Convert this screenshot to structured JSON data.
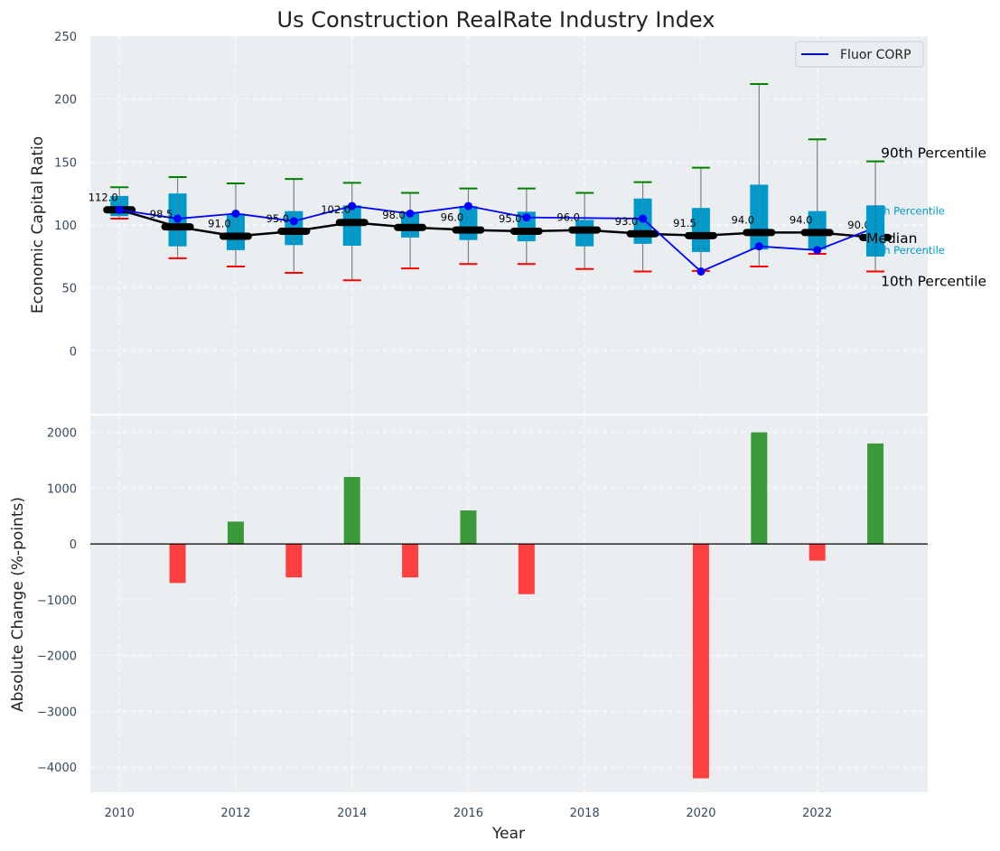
{
  "chart_data": [
    {
      "type": "box",
      "title": "Us Construction RealRate Industry Index",
      "xlabel": "",
      "ylabel": "Economic Capital Ratio",
      "ylim": [
        -50,
        250
      ],
      "xlim": [
        2009.5,
        2023.9
      ],
      "yticks": [
        0,
        50,
        100,
        150,
        200,
        250
      ],
      "grid": true,
      "legend": {
        "placement": "top-right",
        "entries": [
          {
            "label": "Fluor CORP",
            "color": "#0000ff"
          }
        ]
      },
      "years": [
        2010,
        2011,
        2012,
        2013,
        2014,
        2015,
        2016,
        2017,
        2018,
        2019,
        2020,
        2021,
        2022,
        2023
      ],
      "p10": [
        105,
        73.5,
        67,
        62,
        56,
        65.5,
        69,
        69,
        65,
        63,
        63.5,
        67,
        77,
        63
      ],
      "p25": [
        107,
        83,
        80,
        84,
        83.5,
        90,
        88,
        87,
        83,
        85,
        78.5,
        80.5,
        80.5,
        75
      ],
      "median": [
        112.0,
        98.5,
        91.0,
        95.0,
        102.0,
        98.0,
        96.0,
        95.0,
        96.0,
        93.0,
        91.5,
        94.0,
        94.0,
        90.0
      ],
      "median_labels": [
        "112.0",
        "98.5",
        "91.0",
        "95.0",
        "102.0",
        "98.0",
        "96.0",
        "95.0",
        "96.0",
        "93.0",
        "91.5",
        "94.0",
        "94.0",
        "90.0"
      ],
      "p75": [
        123,
        125,
        109,
        111,
        115.5,
        110.5,
        115,
        110.5,
        104,
        121,
        113.5,
        132,
        111,
        115.5
      ],
      "p90": [
        130,
        138,
        133,
        136.5,
        133.5,
        125.5,
        129,
        129,
        125.5,
        134,
        145.5,
        212,
        168,
        150.5
      ],
      "company": {
        "name": "Fluor CORP",
        "values": [
          112,
          105,
          109,
          103,
          115,
          109,
          115,
          106,
          null,
          105,
          63,
          83,
          80,
          98
        ]
      },
      "annotations": {
        "p90": "90th Percentile",
        "p75": "75th Percentile",
        "median": "Median",
        "p25": "25th Percentile",
        "p10": "10th Percentile"
      },
      "colors": {
        "box": "#0099cc",
        "whisker_top": "#008000",
        "whisker_bottom": "#ff0000",
        "median": "#000000",
        "company": "#0000ff",
        "background": "#eaeef0"
      }
    },
    {
      "type": "bar",
      "title": "",
      "xlabel": "Year",
      "ylabel": "Absolute Change (%-points)",
      "ylim": [
        -4450,
        2300
      ],
      "yticks": [
        -4000,
        -3000,
        -2000,
        -1000,
        0,
        1000,
        2000
      ],
      "xticks": [
        2010,
        2012,
        2014,
        2016,
        2018,
        2020,
        2022
      ],
      "grid": true,
      "categories": [
        2010,
        2011,
        2012,
        2013,
        2014,
        2015,
        2016,
        2017,
        2018,
        2019,
        2020,
        2021,
        2022,
        2023
      ],
      "values": [
        null,
        -700,
        400,
        -600,
        1200,
        -600,
        600,
        -900,
        null,
        null,
        -4200,
        2000,
        -300,
        1800
      ],
      "colors": {
        "positive": "#3a9a3a",
        "negative": "#ff4040",
        "zero_line": "#000000"
      }
    }
  ]
}
